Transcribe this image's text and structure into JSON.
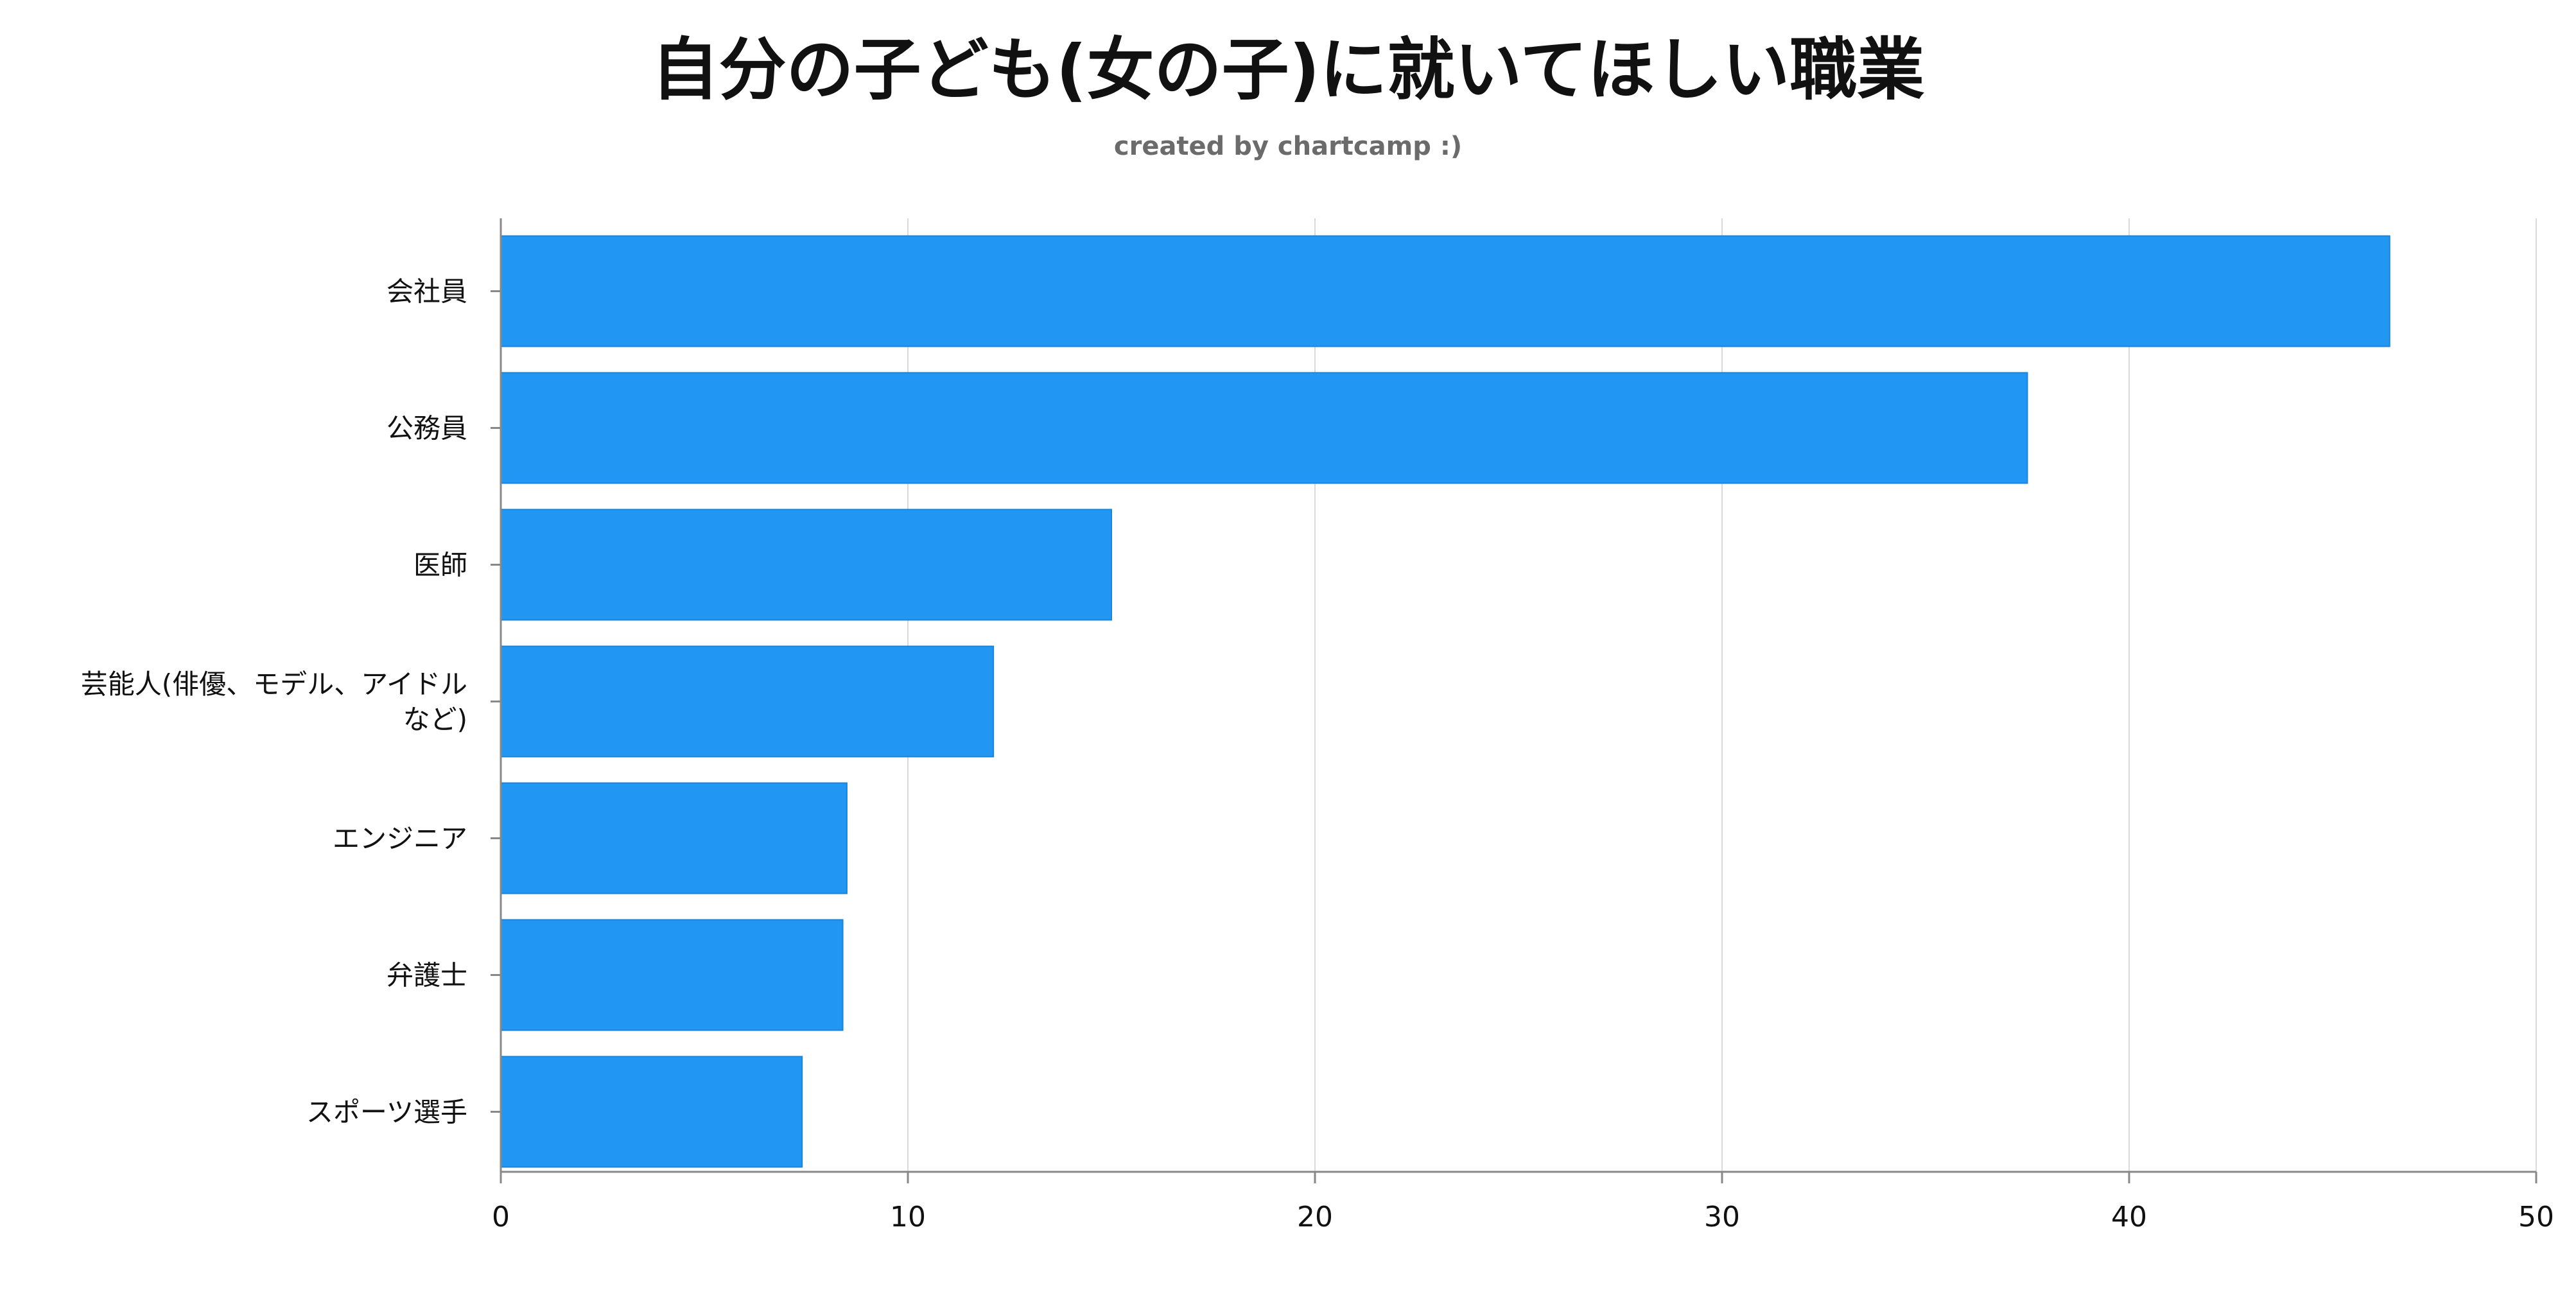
{
  "chart_data": {
    "type": "bar",
    "orientation": "horizontal",
    "title": "自分の子ども(女の子)に就いてほしい職業",
    "subtitle": "created by chartcamp :)",
    "categories": [
      [
        "会社員"
      ],
      [
        "公務員"
      ],
      [
        "医師"
      ],
      [
        "芸能人(俳優、モデル、アイドル",
        "など)"
      ],
      [
        "エンジニア"
      ],
      [
        "弁護士"
      ],
      [
        "スポーツ選手"
      ]
    ],
    "values": [
      46.4,
      37.5,
      15.0,
      12.1,
      8.5,
      8.4,
      7.4
    ],
    "xlim": [
      0,
      50
    ],
    "xticks": [
      0,
      10,
      20,
      30,
      40,
      50
    ],
    "grid": true,
    "bar_color": "#2196f3",
    "bar_edge_color": "#1a84d8",
    "grid_color": "#d9d9d9",
    "axis_color": "#888888"
  }
}
